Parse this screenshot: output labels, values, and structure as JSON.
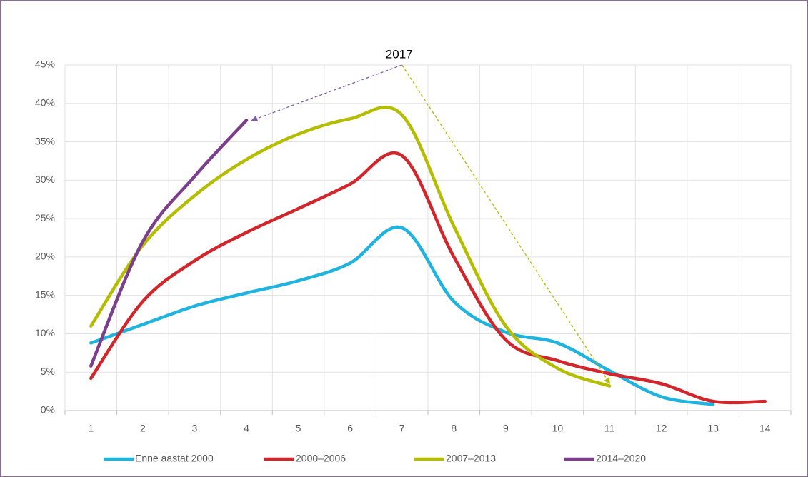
{
  "chart_data": {
    "type": "line",
    "annotation": "2017",
    "categories": [
      "1",
      "2",
      "3",
      "4",
      "5",
      "6",
      "7",
      "8",
      "9",
      "10",
      "11",
      "12",
      "13",
      "14"
    ],
    "series": [
      {
        "name": "Enne aastat 2000",
        "color": "#1fb3e0",
        "values": [
          8.8,
          11.2,
          13.6,
          15.3,
          16.9,
          19.2,
          23.8,
          14.2,
          10.2,
          8.8,
          5.2,
          1.8,
          0.8,
          null
        ]
      },
      {
        "name": "2000–2006",
        "color": "#d0262c",
        "values": [
          4.2,
          14.2,
          19.5,
          23.2,
          26.3,
          29.5,
          33.2,
          20.0,
          9.2,
          6.5,
          4.8,
          3.5,
          1.2,
          1.2
        ]
      },
      {
        "name": "2007–2013",
        "color": "#b5bd00",
        "values": [
          11.0,
          21.5,
          28.0,
          32.7,
          36.0,
          38.0,
          38.5,
          24.0,
          11.0,
          5.5,
          3.2,
          null,
          null,
          null
        ]
      },
      {
        "name": "2014–2020",
        "color": "#7b3f8c",
        "values": [
          5.8,
          22.0,
          30.5,
          37.8,
          null,
          null,
          null,
          null,
          null,
          null,
          null,
          null,
          null,
          null
        ]
      }
    ],
    "ylim": [
      0,
      45
    ],
    "yticks": [
      {
        "value": 0,
        "label": "0%"
      },
      {
        "value": 5,
        "label": "5%"
      },
      {
        "value": 10,
        "label": "10%"
      },
      {
        "value": 15,
        "label": "15%"
      },
      {
        "value": 20,
        "label": "20%"
      },
      {
        "value": 25,
        "label": "25%"
      },
      {
        "value": 30,
        "label": "30%"
      },
      {
        "value": 35,
        "label": "35%"
      },
      {
        "value": 40,
        "label": "40%"
      },
      {
        "value": 45,
        "label": "45%"
      }
    ],
    "grid": true,
    "legend": "bottom"
  }
}
